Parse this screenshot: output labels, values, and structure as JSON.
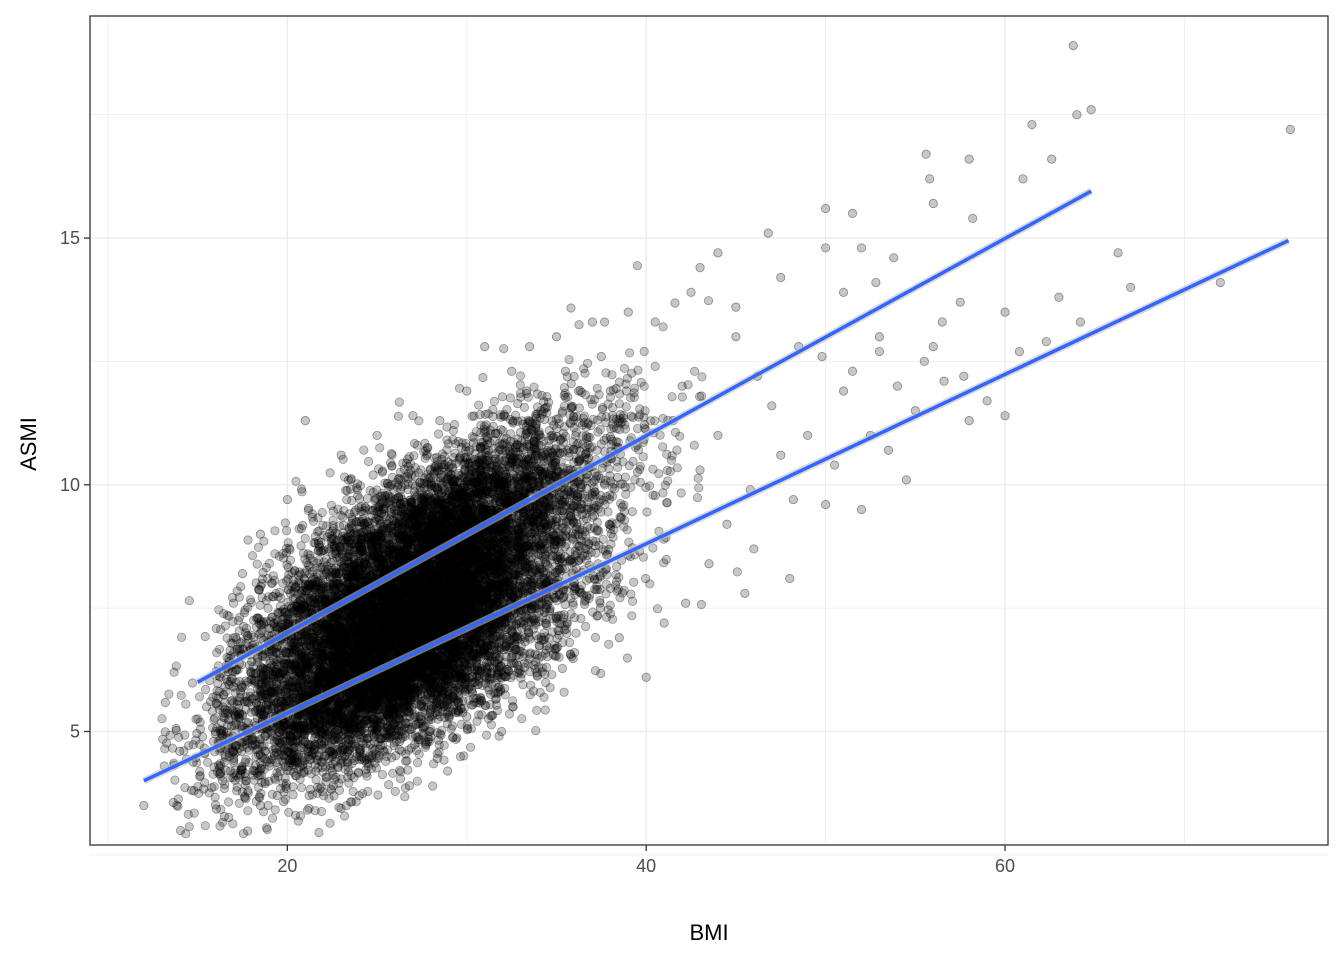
{
  "chart_data": {
    "type": "scatter",
    "title": "",
    "xlabel": "BMI",
    "ylabel": "ASMI",
    "xlim": [
      9.0,
      78.0
    ],
    "ylim": [
      2.7,
      19.5
    ],
    "x_ticks": [
      20,
      40,
      60
    ],
    "y_ticks": [
      5,
      10,
      15
    ],
    "x_tick_labels": [
      "20",
      "40",
      "60"
    ],
    "y_tick_labels": [
      "5",
      "10",
      "15"
    ],
    "grid": true,
    "legend": "none",
    "point_color": "#000000",
    "point_alpha": 0.22,
    "line_color": "#3366ff",
    "series": [
      {
        "values": [
          {
            "x": 63.8,
            "y": 18.9
          },
          {
            "x": 64.0,
            "y": 17.5
          },
          {
            "x": 64.8,
            "y": 17.6
          },
          {
            "x": 75.9,
            "y": 17.2
          },
          {
            "x": 61.5,
            "y": 17.3
          },
          {
            "x": 55.6,
            "y": 16.7
          },
          {
            "x": 58.0,
            "y": 16.6
          },
          {
            "x": 62.6,
            "y": 16.6
          },
          {
            "x": 55.8,
            "y": 16.2
          },
          {
            "x": 61.0,
            "y": 16.2
          },
          {
            "x": 56.0,
            "y": 15.7
          },
          {
            "x": 50.0,
            "y": 15.6
          },
          {
            "x": 51.5,
            "y": 15.5
          },
          {
            "x": 58.2,
            "y": 15.4
          },
          {
            "x": 46.8,
            "y": 15.1
          },
          {
            "x": 50.0,
            "y": 14.8
          },
          {
            "x": 52.0,
            "y": 14.8
          },
          {
            "x": 66.3,
            "y": 14.7
          },
          {
            "x": 53.8,
            "y": 14.6
          },
          {
            "x": 44.0,
            "y": 14.7
          },
          {
            "x": 43.0,
            "y": 14.4
          },
          {
            "x": 42.5,
            "y": 13.9
          },
          {
            "x": 51.0,
            "y": 13.9
          },
          {
            "x": 52.8,
            "y": 14.1
          },
          {
            "x": 67.0,
            "y": 14.0
          },
          {
            "x": 72.0,
            "y": 14.1
          },
          {
            "x": 57.5,
            "y": 13.7
          },
          {
            "x": 56.5,
            "y": 13.3
          },
          {
            "x": 60.0,
            "y": 13.5
          },
          {
            "x": 63.0,
            "y": 13.8
          },
          {
            "x": 64.2,
            "y": 13.3
          },
          {
            "x": 62.3,
            "y": 12.9
          },
          {
            "x": 60.8,
            "y": 12.7
          },
          {
            "x": 55.5,
            "y": 12.5
          },
          {
            "x": 56.6,
            "y": 12.1
          },
          {
            "x": 57.7,
            "y": 12.2
          },
          {
            "x": 59.0,
            "y": 11.7
          },
          {
            "x": 58.0,
            "y": 11.3
          },
          {
            "x": 60.0,
            "y": 11.4
          },
          {
            "x": 52.5,
            "y": 11.0
          },
          {
            "x": 53.5,
            "y": 10.7
          },
          {
            "x": 54.5,
            "y": 10.1
          },
          {
            "x": 52.0,
            "y": 9.5
          },
          {
            "x": 50.0,
            "y": 9.6
          },
          {
            "x": 48.0,
            "y": 8.1
          },
          {
            "x": 45.5,
            "y": 7.8
          },
          {
            "x": 40.0,
            "y": 6.1
          },
          {
            "x": 39.0,
            "y": 13.5
          },
          {
            "x": 33.5,
            "y": 12.8
          },
          {
            "x": 31.0,
            "y": 12.8
          },
          {
            "x": 28.5,
            "y": 11.3
          },
          {
            "x": 21.0,
            "y": 11.3
          },
          {
            "x": 12.0,
            "y": 3.5
          },
          {
            "x": 14.8,
            "y": 3.8
          },
          {
            "x": 18.5,
            "y": 3.5
          },
          {
            "x": 17.8,
            "y": 3.8
          },
          {
            "x": 26.8,
            "y": 3.9
          },
          {
            "x": 24.0,
            "y": 3.7
          },
          {
            "x": 15.5,
            "y": 5.5
          },
          {
            "x": 14.0,
            "y": 4.6
          },
          {
            "x": 47.5,
            "y": 14.2
          },
          {
            "x": 45.0,
            "y": 13.0
          },
          {
            "x": 48.5,
            "y": 12.8
          },
          {
            "x": 46.2,
            "y": 12.2
          },
          {
            "x": 49.8,
            "y": 12.6
          },
          {
            "x": 51.0,
            "y": 11.9
          },
          {
            "x": 47.0,
            "y": 11.6
          },
          {
            "x": 49.0,
            "y": 11.0
          },
          {
            "x": 50.5,
            "y": 10.4
          },
          {
            "x": 47.5,
            "y": 10.6
          },
          {
            "x": 45.8,
            "y": 9.9
          },
          {
            "x": 48.2,
            "y": 9.7
          },
          {
            "x": 44.5,
            "y": 9.2
          },
          {
            "x": 46.0,
            "y": 8.7
          },
          {
            "x": 43.5,
            "y": 8.4
          },
          {
            "x": 42.2,
            "y": 7.6
          },
          {
            "x": 41.0,
            "y": 7.2
          },
          {
            "x": 38.5,
            "y": 6.9
          },
          {
            "x": 36.0,
            "y": 6.6
          },
          {
            "x": 34.0,
            "y": 6.3
          },
          {
            "x": 37.5,
            "y": 12.6
          },
          {
            "x": 35.5,
            "y": 12.3
          },
          {
            "x": 40.5,
            "y": 12.4
          },
          {
            "x": 42.0,
            "y": 12.0
          },
          {
            "x": 38.0,
            "y": 11.9
          },
          {
            "x": 41.5,
            "y": 11.3
          },
          {
            "x": 44.0,
            "y": 11.0
          },
          {
            "x": 43.0,
            "y": 10.3
          },
          {
            "x": 39.5,
            "y": 10.8
          },
          {
            "x": 30.0,
            "y": 5.3
          },
          {
            "x": 28.0,
            "y": 4.9
          },
          {
            "x": 22.5,
            "y": 4.2
          },
          {
            "x": 20.5,
            "y": 4.1
          },
          {
            "x": 19.0,
            "y": 4.3
          },
          {
            "x": 17.0,
            "y": 4.6
          },
          {
            "x": 16.0,
            "y": 5.0
          },
          {
            "x": 17.5,
            "y": 8.2
          },
          {
            "x": 18.5,
            "y": 9.0
          },
          {
            "x": 20.0,
            "y": 9.7
          },
          {
            "x": 23.0,
            "y": 10.6
          },
          {
            "x": 25.0,
            "y": 11.0
          },
          {
            "x": 27.0,
            "y": 11.4
          },
          {
            "x": 30.0,
            "y": 11.9
          },
          {
            "x": 32.5,
            "y": 12.3
          },
          {
            "x": 35.0,
            "y": 13.0
          },
          {
            "x": 37.0,
            "y": 13.3
          },
          {
            "x": 40.5,
            "y": 13.3
          },
          {
            "x": 45.0,
            "y": 13.6
          },
          {
            "x": 53.0,
            "y": 13.0
          },
          {
            "x": 54.0,
            "y": 12.0
          },
          {
            "x": 55.0,
            "y": 11.5
          },
          {
            "x": 56.0,
            "y": 12.8
          },
          {
            "x": 51.5,
            "y": 12.3
          },
          {
            "x": 53.0,
            "y": 12.7
          }
        ]
      }
    ],
    "trend_lines": [
      {
        "x0": 15.0,
        "y0": 6.0,
        "x1": 64.8,
        "y1": 15.95
      },
      {
        "x0": 12.0,
        "y0": 4.0,
        "x1": 75.8,
        "y1": 14.95
      }
    ]
  }
}
